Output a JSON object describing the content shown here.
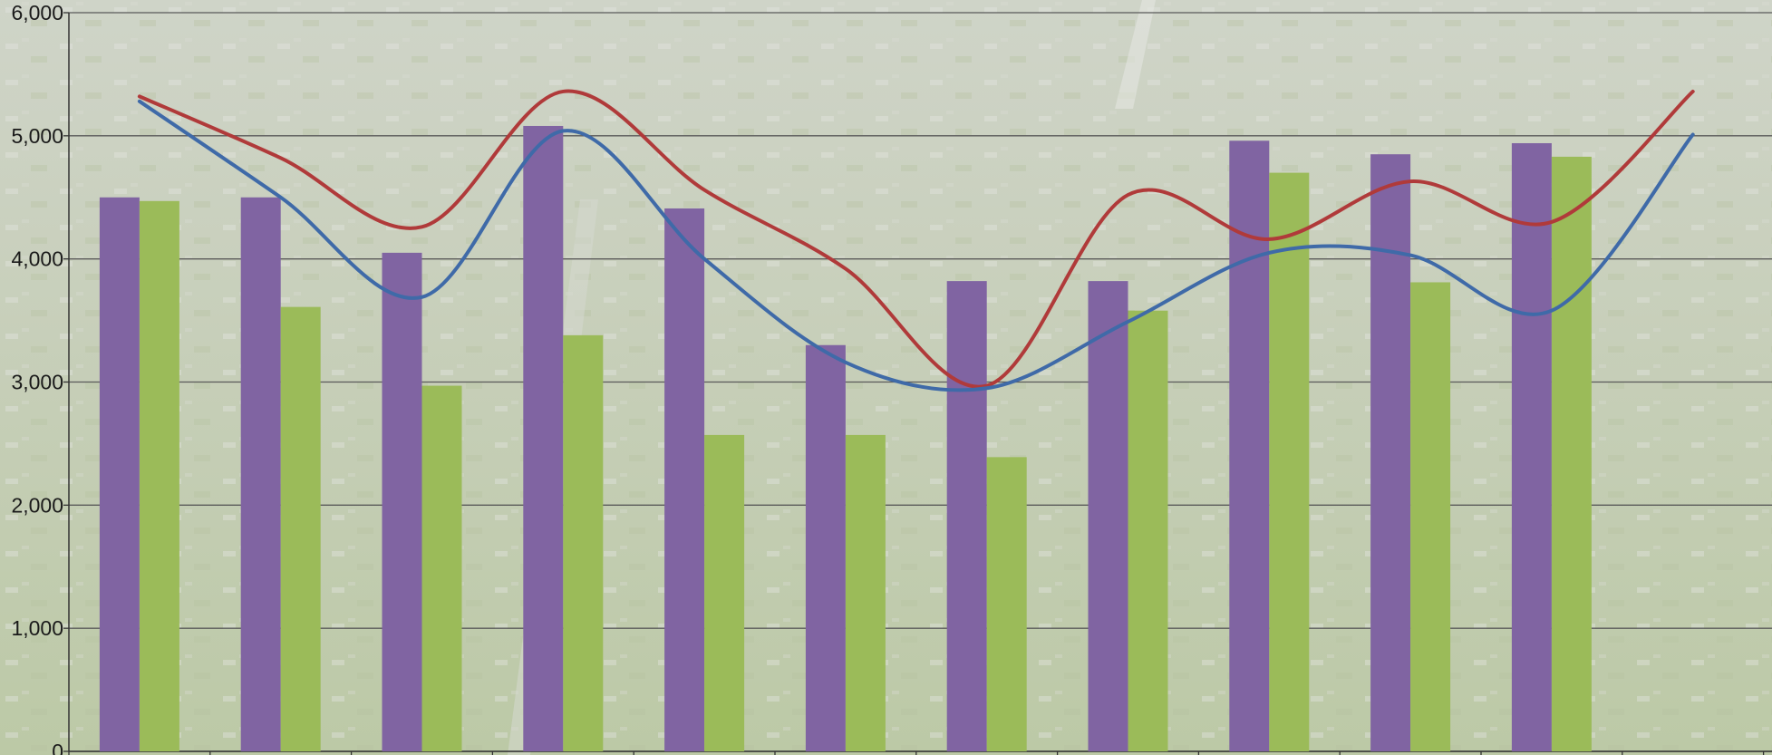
{
  "chart_data": {
    "type": "bar",
    "title": "",
    "xlabel": "",
    "ylabel": "",
    "ylim": [
      0,
      6000
    ],
    "yticks": [
      0,
      1000,
      2000,
      3000,
      4000,
      5000,
      6000
    ],
    "ytick_labels": [
      "0",
      "1,000",
      "2,000",
      "3,000",
      "4,000",
      "5,000",
      "6,000"
    ],
    "grid": true,
    "legend": "none",
    "background": "aerial photograph of an airport and surrounding area, faded",
    "categories": [
      "",
      "",
      "",
      "",
      "",
      "",
      "",
      "",
      "",
      "",
      "",
      ""
    ],
    "series": [
      {
        "type": "bar",
        "color": "#8064a2",
        "values": [
          4500,
          4500,
          4050,
          5080,
          4410,
          3300,
          3820,
          3820,
          4960,
          4850,
          4940,
          null
        ]
      },
      {
        "type": "bar",
        "color": "#9bbb59",
        "values": [
          4470,
          3610,
          2970,
          3380,
          2570,
          2570,
          2390,
          3580,
          4700,
          3810,
          4830,
          null
        ]
      },
      {
        "type": "line",
        "color": "#b03a3a",
        "values": [
          5320,
          4820,
          4260,
          5360,
          4560,
          3920,
          2970,
          4520,
          4160,
          4630,
          4300,
          5360
        ]
      },
      {
        "type": "line",
        "color": "#3f6aa8",
        "values": [
          5280,
          4500,
          3690,
          5040,
          4000,
          3160,
          2950,
          3490,
          4050,
          4030,
          3580,
          5010
        ]
      }
    ]
  }
}
